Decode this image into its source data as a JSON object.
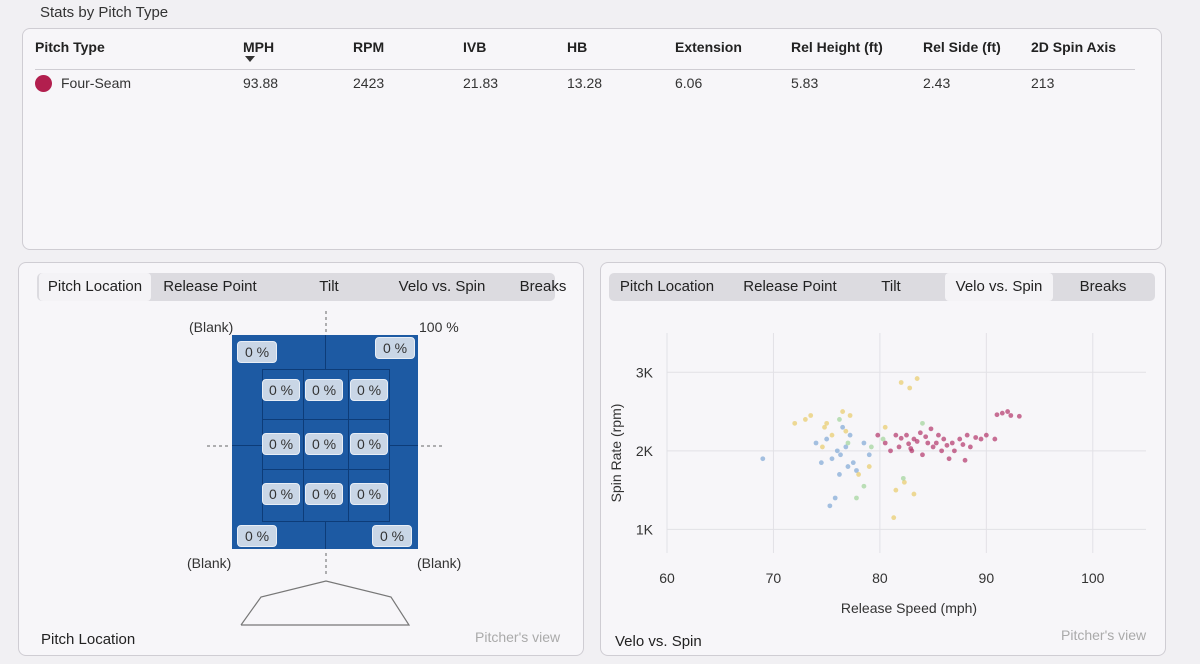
{
  "section_title": "Stats by Pitch Type",
  "stats_table": {
    "columns": [
      "Pitch Type",
      "MPH",
      "RPM",
      "IVB",
      "HB",
      "Extension",
      "Rel Height (ft)",
      "Rel Side (ft)",
      "2D Spin Axis"
    ],
    "rows": [
      {
        "pitch_type": "Four-Seam",
        "color": "#b21f4e",
        "values": [
          "93.88",
          "2423",
          "21.83",
          "13.28",
          "6.06",
          "5.83",
          "2.43",
          "213"
        ]
      }
    ]
  },
  "tabs": [
    "Pitch Location",
    "Release Point",
    "Tilt",
    "Velo vs. Spin",
    "Breaks"
  ],
  "left_panel": {
    "active_tab": "Pitch Location",
    "footer_title": "Pitch Location",
    "footer_note": "Pitcher's view",
    "blank_top_left": "(Blank)",
    "blank_bottom_left": "(Blank)",
    "blank_bottom_right": "(Blank)",
    "top_right_pct": "100 %",
    "zone_values": {
      "corner_tl": "0 %",
      "corner_tr": "0 %",
      "corner_bl": "0 %",
      "corner_br": "0 %",
      "grid": [
        "0 %",
        "0 %",
        "0 %",
        "0 %",
        "0 %",
        "0 %",
        "0 %",
        "0 %",
        "0 %"
      ]
    }
  },
  "right_panel": {
    "active_tab": "Velo vs. Spin",
    "footer_title": "Velo vs. Spin",
    "footer_note": "Pitcher's view"
  },
  "chart_data": {
    "type": "scatter",
    "xlabel": "Release Speed (mph)",
    "ylabel": "Spin Rate (rpm)",
    "xlim": [
      60,
      105
    ],
    "ylim": [
      700,
      3500
    ],
    "x_ticks": [
      "60",
      "70",
      "80",
      "90",
      "100"
    ],
    "x_tick_values": [
      60,
      70,
      80,
      90,
      100
    ],
    "y_ticks": [
      "1K",
      "2K",
      "3K"
    ],
    "y_tick_values": [
      1000,
      2000,
      3000
    ],
    "grid": true,
    "series": [
      {
        "color": "#b2346a",
        "points": [
          [
            91.5,
            2480
          ],
          [
            92.3,
            2450
          ],
          [
            93.1,
            2440
          ],
          [
            92.0,
            2500
          ],
          [
            91.0,
            2460
          ],
          [
            87.5,
            2150
          ],
          [
            88.2,
            2200
          ],
          [
            89.0,
            2170
          ],
          [
            86.8,
            2100
          ],
          [
            85.0,
            2050
          ],
          [
            84.3,
            2180
          ],
          [
            83.5,
            2120
          ],
          [
            82.7,
            2090
          ],
          [
            82.0,
            2160
          ],
          [
            81.5,
            2200
          ],
          [
            83.0,
            2000
          ],
          [
            84.0,
            1950
          ],
          [
            85.8,
            2000
          ],
          [
            86.5,
            1900
          ],
          [
            88.5,
            2050
          ],
          [
            89.5,
            2150
          ],
          [
            90.0,
            2200
          ],
          [
            80.5,
            2100
          ],
          [
            81.8,
            2050
          ],
          [
            83.8,
            2230
          ],
          [
            84.8,
            2280
          ],
          [
            85.5,
            2200
          ],
          [
            87.0,
            2000
          ],
          [
            88.0,
            1880
          ],
          [
            82.5,
            2200
          ],
          [
            83.2,
            2150
          ],
          [
            84.5,
            2100
          ],
          [
            86.0,
            2150
          ],
          [
            87.8,
            2080
          ],
          [
            81.0,
            2000
          ],
          [
            90.8,
            2150
          ],
          [
            86.3,
            2070
          ],
          [
            82.9,
            2030
          ],
          [
            79.8,
            2200
          ],
          [
            85.3,
            2100
          ]
        ]
      },
      {
        "color": "#7fa8d6",
        "points": [
          [
            69.0,
            1900
          ],
          [
            74.5,
            1850
          ],
          [
            75.5,
            1900
          ],
          [
            76.3,
            1950
          ],
          [
            77.0,
            1800
          ],
          [
            76.8,
            2050
          ],
          [
            75.0,
            2150
          ],
          [
            76.2,
            1700
          ],
          [
            75.8,
            1400
          ],
          [
            75.3,
            1300
          ],
          [
            77.5,
            1850
          ],
          [
            78.5,
            2100
          ],
          [
            77.2,
            2200
          ],
          [
            76.5,
            2300
          ],
          [
            79.0,
            1950
          ],
          [
            74.0,
            2100
          ],
          [
            77.8,
            1750
          ],
          [
            76.0,
            2000
          ]
        ]
      },
      {
        "color": "#e8cc6a",
        "points": [
          [
            72.0,
            2350
          ],
          [
            73.0,
            2400
          ],
          [
            73.5,
            2450
          ],
          [
            75.0,
            2350
          ],
          [
            76.5,
            2500
          ],
          [
            77.2,
            2450
          ],
          [
            75.5,
            2200
          ],
          [
            74.6,
            2050
          ],
          [
            79.0,
            1800
          ],
          [
            80.5,
            2300
          ],
          [
            82.0,
            2870
          ],
          [
            83.5,
            2920
          ],
          [
            82.8,
            2800
          ],
          [
            81.5,
            1500
          ],
          [
            82.3,
            1600
          ],
          [
            83.2,
            1450
          ],
          [
            81.3,
            1150
          ],
          [
            78.0,
            1700
          ],
          [
            76.8,
            2250
          ],
          [
            74.8,
            2300
          ]
        ]
      },
      {
        "color": "#9fd49a",
        "points": [
          [
            78.5,
            1550
          ],
          [
            77.8,
            1400
          ],
          [
            79.2,
            2050
          ],
          [
            80.3,
            2150
          ],
          [
            82.2,
            1650
          ],
          [
            76.2,
            2400
          ],
          [
            84.0,
            2350
          ],
          [
            77.0,
            2100
          ]
        ]
      }
    ]
  }
}
